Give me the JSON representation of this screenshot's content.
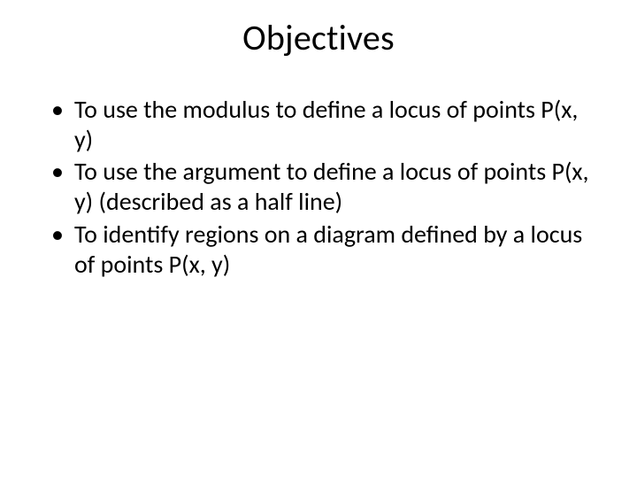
{
  "slide": {
    "title": "Objectives",
    "title_fontsize": 40,
    "body_fontsize": 28,
    "background_color": "#ffffff",
    "text_color": "#000000",
    "bullets": [
      "To use the modulus to define a locus of points P(x, y)",
      "To use the argument to define a locus of points P(x, y) (described as a half line)",
      "To identify regions on a diagram defined by a locus of points P(x, y)"
    ]
  }
}
